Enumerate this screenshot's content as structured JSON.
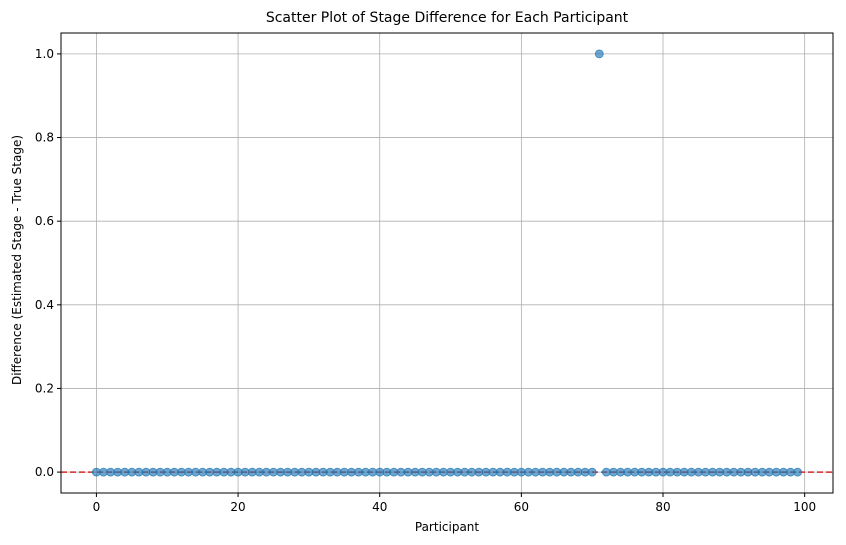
{
  "chart_data": {
    "type": "scatter",
    "title": "Scatter Plot of Stage Difference for Each Participant",
    "xlabel": "Participant",
    "ylabel": "Difference (Estimated Stage - True Stage)",
    "xlim": [
      -5,
      104
    ],
    "ylim": [
      -0.05,
      1.05
    ],
    "xticks": [
      0,
      20,
      40,
      60,
      80,
      100
    ],
    "yticks": [
      0.0,
      0.2,
      0.4,
      0.6,
      0.8,
      1.0
    ],
    "xtick_labels": [
      "0",
      "20",
      "40",
      "60",
      "80",
      "100"
    ],
    "ytick_labels": [
      "0.0",
      "0.2",
      "0.4",
      "0.6",
      "0.8",
      "1.0"
    ],
    "grid": true,
    "reference_line": {
      "y": 0,
      "style": "dashed",
      "color": "#d62728"
    },
    "series": [
      {
        "color": "#1f77b4",
        "x": [
          0,
          1,
          2,
          3,
          4,
          5,
          6,
          7,
          8,
          9,
          10,
          11,
          12,
          13,
          14,
          15,
          16,
          17,
          18,
          19,
          20,
          21,
          22,
          23,
          24,
          25,
          26,
          27,
          28,
          29,
          30,
          31,
          32,
          33,
          34,
          35,
          36,
          37,
          38,
          39,
          40,
          41,
          42,
          43,
          44,
          45,
          46,
          47,
          48,
          49,
          50,
          51,
          52,
          53,
          54,
          55,
          56,
          57,
          58,
          59,
          60,
          61,
          62,
          63,
          64,
          65,
          66,
          67,
          68,
          69,
          70,
          71,
          72,
          73,
          74,
          75,
          76,
          77,
          78,
          79,
          80,
          81,
          82,
          83,
          84,
          85,
          86,
          87,
          88,
          89,
          90,
          91,
          92,
          93,
          94,
          95,
          96,
          97,
          98,
          99
        ],
        "y": [
          0,
          0,
          0,
          0,
          0,
          0,
          0,
          0,
          0,
          0,
          0,
          0,
          0,
          0,
          0,
          0,
          0,
          0,
          0,
          0,
          0,
          0,
          0,
          0,
          0,
          0,
          0,
          0,
          0,
          0,
          0,
          0,
          0,
          0,
          0,
          0,
          0,
          0,
          0,
          0,
          0,
          0,
          0,
          0,
          0,
          0,
          0,
          0,
          0,
          0,
          0,
          0,
          0,
          0,
          0,
          0,
          0,
          0,
          0,
          0,
          0,
          0,
          0,
          0,
          0,
          0,
          0,
          0,
          0,
          0,
          0,
          1,
          0,
          0,
          0,
          0,
          0,
          0,
          0,
          0,
          0,
          0,
          0,
          0,
          0,
          0,
          0,
          0,
          0,
          0,
          0,
          0,
          0,
          0,
          0,
          0,
          0,
          0,
          0,
          0
        ]
      }
    ]
  }
}
